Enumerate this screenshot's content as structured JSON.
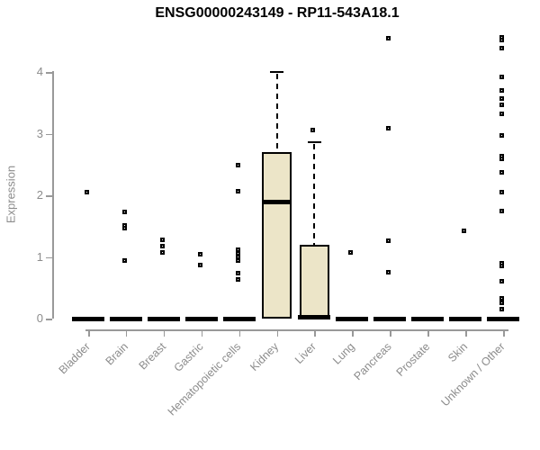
{
  "chart_data": {
    "type": "boxplot",
    "title": "ENSG00000243149 - RP11-543A18.1",
    "ylabel": "Expression",
    "xlabel": "",
    "ylim": [
      0,
      4.7
    ],
    "yticks": [
      0,
      1,
      2,
      3,
      4
    ],
    "grid": false,
    "legend": "none",
    "categories": [
      "Bladder",
      "Brain",
      "Breast",
      "Gastric",
      "Hematopoietic cells",
      "Kidney",
      "Liver",
      "Lung",
      "Pancreas",
      "Prostate",
      "Skin",
      "Unknown / Other"
    ],
    "series": [
      {
        "category": "Bladder",
        "q1": 0,
        "median": 0,
        "q3": 0,
        "whisker_high": 0,
        "outliers": [
          2.05
        ]
      },
      {
        "category": "Brain",
        "q1": 0,
        "median": 0,
        "q3": 0,
        "whisker_high": 0,
        "outliers": [
          1.73,
          1.51,
          1.47,
          0.95
        ]
      },
      {
        "category": "Breast",
        "q1": 0,
        "median": 0,
        "q3": 0,
        "whisker_high": 0,
        "outliers": [
          1.28,
          1.17,
          1.08
        ]
      },
      {
        "category": "Gastric",
        "q1": 0,
        "median": 0,
        "q3": 0,
        "whisker_high": 0,
        "outliers": [
          1.04,
          0.87
        ]
      },
      {
        "category": "Hematopoietic cells",
        "q1": 0,
        "median": 0,
        "q3": 0,
        "whisker_high": 0,
        "outliers": [
          2.5,
          2.07,
          1.12,
          1.06,
          1.0,
          0.95,
          0.74,
          0.63
        ]
      },
      {
        "category": "Kidney",
        "q1": 0,
        "median": 1.89,
        "q3": 2.7,
        "whisker_high": 4.01,
        "outliers": []
      },
      {
        "category": "Liver",
        "q1": 0,
        "median": 0,
        "q3": 1.2,
        "whisker_high": 2.87,
        "outliers": [
          3.06
        ]
      },
      {
        "category": "Lung",
        "q1": 0,
        "median": 0,
        "q3": 0,
        "whisker_high": 0,
        "outliers": [
          1.07
        ]
      },
      {
        "category": "Pancreas",
        "q1": 0,
        "median": 0,
        "q3": 0,
        "whisker_high": 0,
        "outliers": [
          4.55,
          3.09,
          1.26,
          0.76
        ]
      },
      {
        "category": "Prostate",
        "q1": 0,
        "median": 0,
        "q3": 0,
        "whisker_high": 0,
        "outliers": []
      },
      {
        "category": "Skin",
        "q1": 0,
        "median": 0,
        "q3": 0,
        "whisker_high": 0,
        "outliers": [
          1.42
        ]
      },
      {
        "category": "Unknown / Other",
        "q1": 0,
        "median": 0,
        "q3": 0,
        "whisker_high": 0,
        "outliers": [
          4.57,
          4.53,
          4.4,
          3.93,
          3.7,
          3.58,
          3.47,
          3.32,
          2.98,
          2.64,
          2.59,
          2.37,
          2.06,
          1.75,
          0.9,
          0.85,
          0.61,
          0.33,
          0.25,
          0.16
        ]
      }
    ],
    "colors": {
      "box_fill": "#ece5c8",
      "box_border": "#000000",
      "median": "#000000",
      "outlier": "#000000",
      "axis": "#999999",
      "tick_label": "#8c8c8c",
      "title": "#000000",
      "background": "#ffffff"
    }
  }
}
